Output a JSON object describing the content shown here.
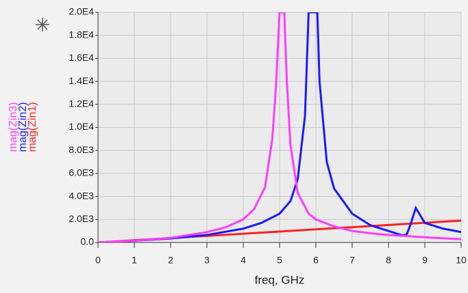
{
  "chart_data": {
    "type": "line",
    "x_label": "freq, GHz",
    "xlim": [
      0,
      10
    ],
    "xticks": [
      0,
      1,
      2,
      3,
      4,
      5,
      6,
      7,
      8,
      9,
      10
    ],
    "ylim": [
      0,
      20000
    ],
    "yticks": [
      {
        "value": 0,
        "label": "0.0"
      },
      {
        "value": 2000,
        "label": "2.0E3"
      },
      {
        "value": 4000,
        "label": "4.0E3"
      },
      {
        "value": 6000,
        "label": "6.0E3"
      },
      {
        "value": 8000,
        "label": "8.0E3"
      },
      {
        "value": 10000,
        "label": "1.0E4"
      },
      {
        "value": 12000,
        "label": "1.2E4"
      },
      {
        "value": 14000,
        "label": "1.4E4"
      },
      {
        "value": 16000,
        "label": "1.6E4"
      },
      {
        "value": 18000,
        "label": "1.8E4"
      },
      {
        "value": 20000,
        "label": "2.0E4"
      }
    ],
    "grid": true,
    "series": [
      {
        "name": "mag(Zin3)",
        "color": "#ff3cff",
        "x": [
          0,
          1,
          2,
          3,
          3.5,
          4,
          4.3,
          4.6,
          4.8,
          4.9,
          5.0,
          5.13,
          5.2,
          5.3,
          5.5,
          5.8,
          6,
          6.5,
          7,
          7.5,
          8,
          9,
          10
        ],
        "values": [
          0,
          150,
          400,
          900,
          1300,
          2000,
          2900,
          4800,
          9000,
          13500,
          20000,
          20000,
          14000,
          8500,
          4300,
          2500,
          2000,
          1400,
          1000,
          800,
          650,
          450,
          280
        ]
      },
      {
        "name": "mag(Zin2)",
        "color": "#1a1aff",
        "x": [
          0,
          1,
          2,
          3,
          4,
          4.5,
          5,
          5.3,
          5.5,
          5.7,
          5.8,
          6.04,
          6.1,
          6.3,
          6.5,
          7,
          7.5,
          8,
          8.4,
          8.5,
          8.6,
          8.75,
          9,
          9.5,
          10
        ],
        "values": [
          0,
          150,
          350,
          650,
          1200,
          1700,
          2500,
          3600,
          5500,
          11000,
          20000,
          20000,
          14000,
          7000,
          4700,
          2500,
          1500,
          1000,
          600,
          700,
          1500,
          3000,
          1700,
          1200,
          900
        ]
      },
      {
        "name": "mag(Zin1)",
        "color": "#ff2020",
        "x": [
          0,
          1,
          2,
          3,
          4,
          5,
          6,
          7,
          8,
          9,
          10
        ],
        "values": [
          0,
          190,
          380,
          570,
          760,
          950,
          1140,
          1330,
          1520,
          1710,
          1900
        ]
      }
    ]
  }
}
